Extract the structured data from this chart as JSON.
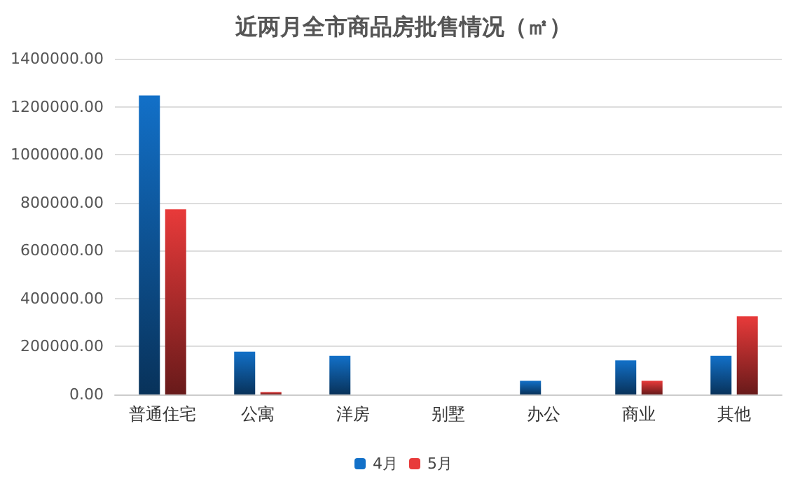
{
  "chart_data": {
    "type": "bar",
    "title": "近两月全市商品房批售情况（㎡）",
    "categories": [
      "普通住宅",
      "公寓",
      "洋房",
      "别墅",
      "办公",
      "商业",
      "其他"
    ],
    "series": [
      {
        "name": "4月",
        "color": "#1270c8",
        "values": [
          1247000,
          179000,
          161000,
          0,
          57000,
          142000,
          161000
        ]
      },
      {
        "name": "5月",
        "color": "#e83a3a",
        "values": [
          772000,
          10000,
          0,
          0,
          0,
          57000,
          326000
        ]
      }
    ],
    "ylim": [
      0,
      1400000
    ],
    "yticks": [
      {
        "value": 0,
        "label": "0.00"
      },
      {
        "value": 200000,
        "label": "200000.00"
      },
      {
        "value": 400000,
        "label": "400000.00"
      },
      {
        "value": 600000,
        "label": "600000.00"
      },
      {
        "value": 800000,
        "label": "800000.00"
      },
      {
        "value": 1000000,
        "label": "1000000.00"
      },
      {
        "value": 1200000,
        "label": "1200000.00"
      },
      {
        "value": 1400000,
        "label": "1400000.00"
      }
    ],
    "grid": "y",
    "legend": "bottom"
  }
}
